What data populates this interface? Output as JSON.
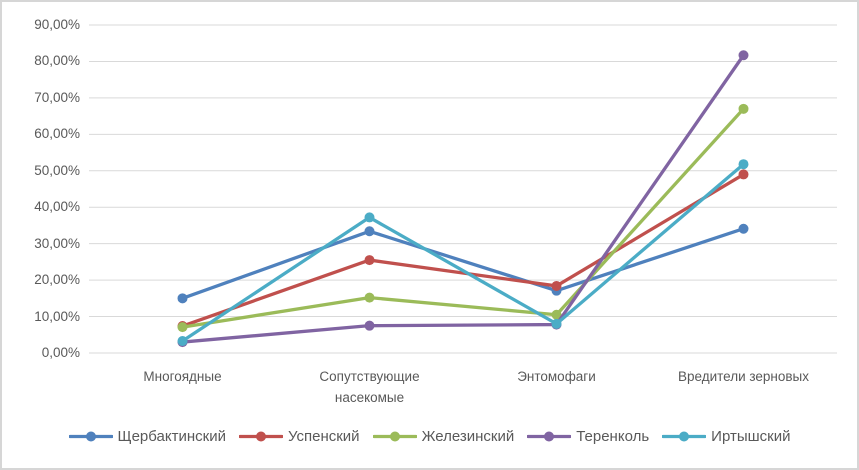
{
  "chart_data": {
    "type": "line",
    "title": "",
    "xlabel": "",
    "ylabel": "",
    "categories": [
      "Многоядные",
      "Сопутствующие насекомые",
      "Энтомофаги",
      "Вредители зерновых"
    ],
    "series": [
      {
        "name": "Щербактинский",
        "color": "#4F81BD",
        "values": [
          15.0,
          33.4,
          17.1,
          34.1
        ]
      },
      {
        "name": "Успенский",
        "color": "#C0504D",
        "values": [
          7.4,
          25.5,
          18.4,
          49.0
        ]
      },
      {
        "name": "Железинский",
        "color": "#9BBB59",
        "values": [
          7.1,
          15.2,
          10.5,
          67.0
        ]
      },
      {
        "name": "Теренколь",
        "color": "#8064A2",
        "values": [
          3.0,
          7.5,
          7.8,
          81.7
        ]
      },
      {
        "name": "Иртышский",
        "color": "#4BACC6",
        "values": [
          3.3,
          37.2,
          8.0,
          51.8
        ]
      }
    ],
    "y_axis": {
      "min": 0,
      "max": 90,
      "step": 10,
      "tick_labels": [
        "0,00%",
        "10,00%",
        "20,00%",
        "30,00%",
        "40,00%",
        "50,00%",
        "60,00%",
        "70,00%",
        "80,00%",
        "90,00%"
      ]
    },
    "grid": true,
    "legend_position": "bottom",
    "gridline_color": "#D9D9D9",
    "text_color": "#595959"
  }
}
